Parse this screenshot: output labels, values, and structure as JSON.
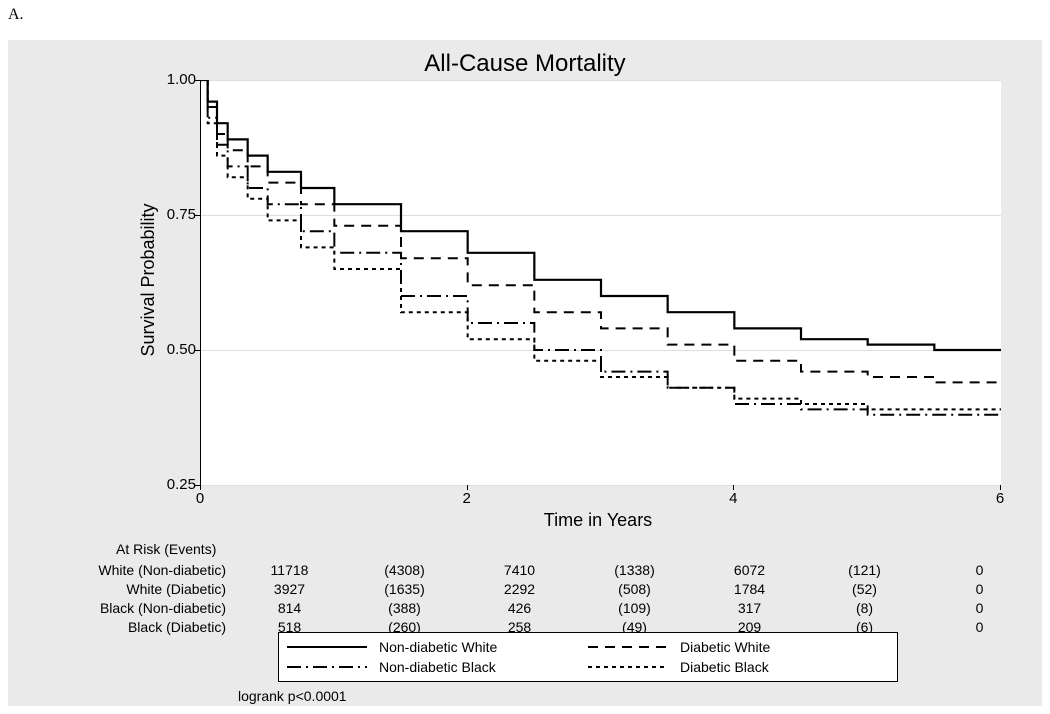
{
  "panel_label": "A.",
  "chart": {
    "type": "line",
    "title": "All-Cause Mortality",
    "title_fontsize": 24,
    "xlabel": "Time in Years",
    "ylabel": "Survival Probability",
    "label_fontsize": 18,
    "tick_fontsize": 15,
    "background_color": "#eaeaea",
    "plot_background": "#ffffff",
    "grid_color": "#dedede",
    "axis_color": "#000000",
    "xlim": [
      0,
      6
    ],
    "ylim": [
      0.25,
      1.0
    ],
    "xticks": [
      0,
      2,
      4,
      6
    ],
    "yticks": [
      0.25,
      0.5,
      0.75,
      1.0
    ],
    "ytick_labels": [
      "0.25",
      "0.50",
      "0.75",
      "1.00"
    ],
    "series": [
      {
        "name": "Non-diabetic White",
        "color": "#000000",
        "width": 2.2,
        "dash": "none",
        "x": [
          0,
          0.05,
          0.12,
          0.2,
          0.35,
          0.5,
          0.75,
          1,
          1.5,
          2,
          2.5,
          3,
          3.5,
          4,
          4.5,
          5,
          5.5,
          6
        ],
        "y": [
          1.0,
          0.96,
          0.92,
          0.89,
          0.86,
          0.83,
          0.8,
          0.77,
          0.72,
          0.68,
          0.63,
          0.6,
          0.57,
          0.54,
          0.52,
          0.51,
          0.5,
          0.5
        ]
      },
      {
        "name": "Diabetic White",
        "color": "#000000",
        "width": 2.0,
        "dash": "10,7",
        "x": [
          0,
          0.05,
          0.12,
          0.2,
          0.35,
          0.5,
          0.75,
          1,
          1.5,
          2,
          2.5,
          3,
          3.5,
          4,
          4.5,
          5,
          5.5,
          6
        ],
        "y": [
          1.0,
          0.95,
          0.9,
          0.87,
          0.84,
          0.81,
          0.77,
          0.73,
          0.67,
          0.62,
          0.57,
          0.54,
          0.51,
          0.48,
          0.46,
          0.45,
          0.44,
          0.44
        ]
      },
      {
        "name": "Non-diabetic Black",
        "color": "#000000",
        "width": 2.0,
        "dash": "14,5,2,5",
        "x": [
          0,
          0.05,
          0.12,
          0.2,
          0.35,
          0.5,
          0.75,
          1,
          1.5,
          2,
          2.5,
          3,
          3.5,
          4,
          4.5,
          5,
          5.5,
          6
        ],
        "y": [
          1.0,
          0.93,
          0.88,
          0.84,
          0.8,
          0.77,
          0.72,
          0.68,
          0.6,
          0.55,
          0.5,
          0.46,
          0.43,
          0.4,
          0.39,
          0.38,
          0.38,
          0.38
        ]
      },
      {
        "name": "Diabetic Black",
        "color": "#000000",
        "width": 2.0,
        "dash": "4,4",
        "x": [
          0,
          0.05,
          0.12,
          0.2,
          0.35,
          0.5,
          0.75,
          1,
          1.5,
          2,
          2.5,
          3,
          3.5,
          4,
          4.5,
          5,
          5.5,
          6
        ],
        "y": [
          1.0,
          0.92,
          0.86,
          0.82,
          0.78,
          0.74,
          0.69,
          0.65,
          0.57,
          0.52,
          0.48,
          0.45,
          0.43,
          0.41,
          0.4,
          0.39,
          0.39,
          0.39
        ]
      }
    ]
  },
  "risk_table": {
    "header": "At Risk (Events)",
    "rows": [
      {
        "label": "White (Non-diabetic)",
        "cells": [
          "11718",
          "(4308)",
          "7410",
          "(1338)",
          "6072",
          "(121)",
          "0"
        ]
      },
      {
        "label": "White (Diabetic)",
        "cells": [
          "3927",
          "(1635)",
          "2292",
          "(508)",
          "1784",
          "(52)",
          "0"
        ]
      },
      {
        "label": "Black (Non-diabetic)",
        "cells": [
          "814",
          "(388)",
          "426",
          "(109)",
          "317",
          "(8)",
          "0"
        ]
      },
      {
        "label": "Black (Diabetic)",
        "cells": [
          "518",
          "(260)",
          "258",
          "(49)",
          "209",
          "(6)",
          "0"
        ]
      }
    ]
  },
  "legend": {
    "items": [
      {
        "label": "Non-diabetic White",
        "dash": "none"
      },
      {
        "label": "Diabetic White",
        "dash": "10,7"
      },
      {
        "label": "Non-diabetic Black",
        "dash": "14,5,2,5"
      },
      {
        "label": "Diabetic Black",
        "dash": "4,4"
      }
    ]
  },
  "logrank_text": "logrank p<0.0001"
}
